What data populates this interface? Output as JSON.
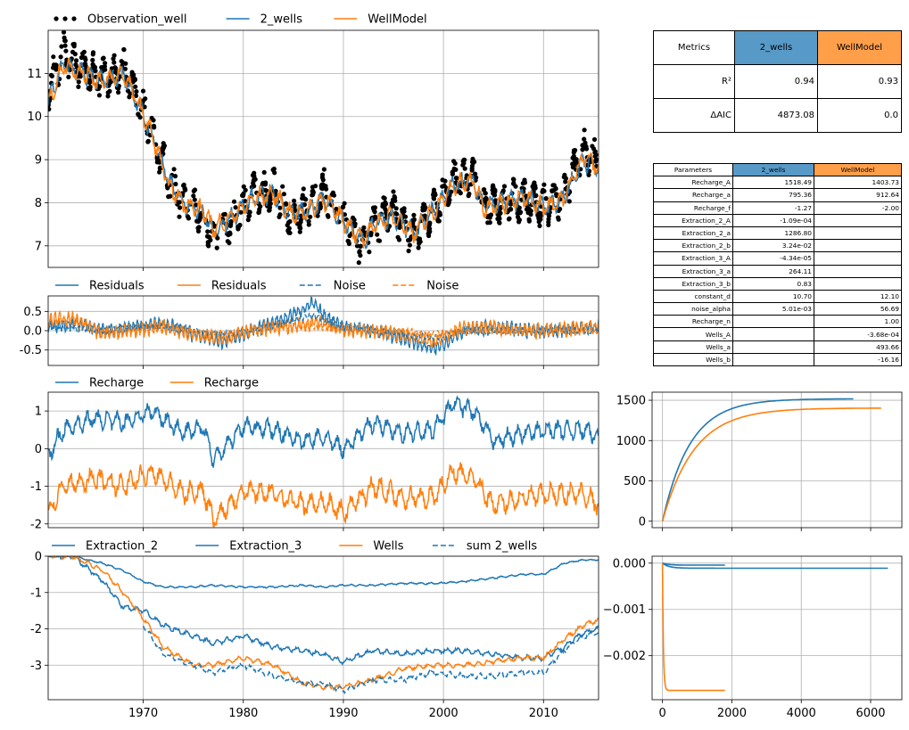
{
  "colors": {
    "blue": "#1f77b4",
    "orange": "#ff7f0e",
    "blue_header": "#5799c7",
    "orange_header": "#ff9f4a",
    "grid": "#b0b0b0"
  },
  "metrics_table": {
    "header": [
      "Metrics",
      "2_wells",
      "WellModel"
    ],
    "rows": [
      [
        "R²",
        "0.94",
        "0.93"
      ],
      [
        "ΔAIC",
        "4873.08",
        "0.0"
      ]
    ]
  },
  "parameters_table": {
    "header": [
      "Parameters",
      "2_wells",
      "WellModel"
    ],
    "rows": [
      [
        "Recharge_A",
        "1518.49",
        "1403.73"
      ],
      [
        "Recharge_a",
        "795.36",
        "912.64"
      ],
      [
        "Recharge_f",
        "-1.27",
        "-2.00"
      ],
      [
        "Extraction_2_A",
        "-1.09e-04",
        ""
      ],
      [
        "Extraction_2_a",
        "1286.80",
        ""
      ],
      [
        "Extraction_2_b",
        "3.24e-02",
        ""
      ],
      [
        "Extraction_3_A",
        "-4.34e-05",
        ""
      ],
      [
        "Extraction_3_a",
        "264.11",
        ""
      ],
      [
        "Extraction_3_b",
        "0.83",
        ""
      ],
      [
        "constant_d",
        "10.70",
        "12.10"
      ],
      [
        "noise_alpha",
        "5.01e-03",
        "56.69"
      ],
      [
        "Recharge_n",
        "",
        "1.00"
      ],
      [
        "Wells_A",
        "",
        "-3.68e-04"
      ],
      [
        "Wells_a",
        "",
        "493.66"
      ],
      [
        "Wells_b",
        "",
        "-16.16"
      ]
    ]
  },
  "chart_data": [
    {
      "type": "line",
      "panel": "head",
      "legend": [
        "Observation_well",
        "2_wells",
        "WellModel"
      ],
      "xlim": [
        1960.5,
        2015.5
      ],
      "ylim": [
        6.5,
        12.0
      ],
      "yticks": [
        7,
        8,
        9,
        10,
        11
      ],
      "keypoints_x": [
        1960.5,
        1962,
        1964,
        1966,
        1968,
        1969.5,
        1971,
        1972.5,
        1974,
        1976,
        1977,
        1979,
        1981,
        1983,
        1985,
        1987,
        1988,
        1990,
        1992,
        1993,
        1995,
        1997,
        1999,
        2001,
        2003,
        2004,
        2006,
        2008,
        2010,
        2012,
        2014,
        2015.5
      ],
      "series": [
        {
          "name": "Observation_well",
          "style": "dots",
          "values": [
            10.6,
            11.5,
            11.1,
            10.9,
            11.1,
            10.4,
            9.6,
            8.6,
            8.0,
            7.8,
            7.2,
            7.6,
            8.2,
            8.3,
            7.6,
            8.0,
            8.3,
            7.6,
            7.0,
            7.5,
            7.8,
            7.2,
            7.8,
            8.5,
            8.6,
            7.9,
            8.0,
            8.1,
            7.9,
            8.2,
            9.2,
            8.9
          ]
        },
        {
          "name": "2_wells",
          "style": "line",
          "values": [
            10.4,
            11.2,
            11.0,
            10.8,
            11.0,
            10.3,
            9.5,
            8.5,
            8.0,
            7.8,
            7.3,
            7.7,
            8.1,
            8.2,
            7.7,
            7.9,
            8.1,
            7.6,
            7.1,
            7.5,
            7.7,
            7.3,
            7.8,
            8.4,
            8.5,
            7.9,
            8.0,
            8.1,
            7.9,
            8.1,
            9.0,
            8.8
          ]
        },
        {
          "name": "WellModel",
          "style": "line",
          "values": [
            10.3,
            11.2,
            11.0,
            10.8,
            11.0,
            10.3,
            9.5,
            8.4,
            8.0,
            7.8,
            7.4,
            7.7,
            8.1,
            8.2,
            7.7,
            7.9,
            8.1,
            7.6,
            7.1,
            7.5,
            7.7,
            7.3,
            7.8,
            8.4,
            8.5,
            7.9,
            8.0,
            8.1,
            7.9,
            8.1,
            9.1,
            8.8
          ]
        }
      ]
    },
    {
      "type": "line",
      "panel": "residuals",
      "legend": [
        "Residuals",
        "Residuals",
        "Noise",
        "Noise"
      ],
      "xlim": [
        1960.5,
        2015.5
      ],
      "ylim": [
        -0.9,
        0.9
      ],
      "yticks": [
        -0.5,
        0.0,
        0.5
      ],
      "keypoints_x": [
        1960.5,
        1963,
        1966,
        1969,
        1972,
        1975,
        1978,
        1981,
        1984,
        1987,
        1988,
        1990,
        1993,
        1996,
        1999,
        2002,
        2005,
        2008,
        2011,
        2014,
        2015.5
      ],
      "series": [
        {
          "name": "Residuals",
          "values": [
            0.1,
            0.2,
            0.0,
            0.1,
            0.2,
            -0.1,
            -0.3,
            0.0,
            0.3,
            0.7,
            0.4,
            0.1,
            0.0,
            -0.2,
            -0.5,
            0.0,
            0.1,
            0.0,
            0.0,
            0.1,
            0.1
          ]
        },
        {
          "name": "Residuals",
          "values": [
            0.3,
            0.3,
            -0.1,
            0.0,
            0.1,
            -0.1,
            -0.2,
            0.0,
            0.1,
            0.2,
            0.2,
            0.0,
            0.0,
            -0.1,
            -0.3,
            0.1,
            0.1,
            0.0,
            0.0,
            0.1,
            0.1
          ]
        },
        {
          "name": "Noise",
          "style": "dashed",
          "values": [
            0.1,
            0.1,
            0.0,
            0.1,
            0.1,
            0.0,
            -0.1,
            0.0,
            0.2,
            0.4,
            0.3,
            0.1,
            0.0,
            -0.1,
            -0.2,
            0.0,
            0.0,
            0.0,
            0.0,
            0.0,
            0.0
          ]
        },
        {
          "name": "Noise",
          "style": "dashed",
          "values": [
            0.2,
            0.3,
            0.0,
            0.0,
            0.1,
            0.0,
            -0.1,
            0.0,
            0.1,
            0.1,
            0.1,
            0.0,
            0.0,
            0.0,
            -0.1,
            0.0,
            0.0,
            0.0,
            0.0,
            0.0,
            0.0
          ]
        }
      ]
    },
    {
      "type": "line",
      "panel": "recharge",
      "legend": [
        "Recharge",
        "Recharge"
      ],
      "xlim": [
        1960.5,
        2015.5
      ],
      "ylim": [
        -2.1,
        1.5
      ],
      "yticks": [
        -2,
        -1,
        0,
        1
      ],
      "keypoints_x": [
        1960.5,
        1962,
        1965,
        1968,
        1971,
        1974,
        1976,
        1977,
        1980,
        1983,
        1986,
        1988,
        1990,
        1993,
        1996,
        1999,
        2001,
        2003,
        2005,
        2008,
        2011,
        2014,
        2015.5
      ],
      "series": [
        {
          "name": "Recharge",
          "values": [
            -0.2,
            0.5,
            0.8,
            0.7,
            1.0,
            0.4,
            0.6,
            -0.3,
            0.6,
            0.5,
            0.2,
            0.3,
            0.0,
            0.7,
            0.4,
            0.5,
            1.2,
            1.0,
            0.2,
            0.4,
            0.5,
            0.5,
            0.3
          ]
        },
        {
          "name": "Recharge",
          "values": [
            -1.7,
            -1.0,
            -0.8,
            -1.0,
            -0.6,
            -1.2,
            -1.1,
            -1.9,
            -1.1,
            -1.2,
            -1.5,
            -1.4,
            -1.7,
            -1.0,
            -1.3,
            -1.3,
            -0.6,
            -0.8,
            -1.5,
            -1.3,
            -1.2,
            -1.2,
            -1.5
          ]
        }
      ]
    },
    {
      "type": "line",
      "panel": "recharge_response",
      "xlim": [
        -300,
        6900
      ],
      "ylim": [
        -80,
        1600
      ],
      "yticks": [
        0,
        500,
        1000,
        1500
      ],
      "series": [
        {
          "name": "2_wells",
          "tmax": 5500,
          "gain": 1518.49,
          "tau": 795.36
        },
        {
          "name": "WellModel",
          "tmax": 6300,
          "gain": 1403.73,
          "tau": 912.64
        }
      ]
    },
    {
      "type": "line",
      "panel": "wells",
      "legend": [
        "Extraction_2",
        "Extraction_3",
        "Wells",
        "sum 2_wells"
      ],
      "xlim": [
        1960.5,
        2015.5
      ],
      "ylim": [
        -3.95,
        0.0
      ],
      "yticks": [
        -3,
        -2,
        -1,
        0
      ],
      "xticks": [
        1970,
        1980,
        1990,
        2000,
        2010
      ],
      "keypoints_x": [
        1960.5,
        1963,
        1966,
        1968,
        1970,
        1972,
        1975,
        1977,
        1980,
        1983,
        1986,
        1988,
        1990,
        1993,
        1996,
        1999,
        2002,
        2005,
        2008,
        2010,
        2012,
        2014,
        2015.5
      ],
      "series": [
        {
          "name": "Extraction_2",
          "values": [
            0.0,
            0.0,
            -0.7,
            -1.4,
            -1.5,
            -1.9,
            -2.2,
            -2.4,
            -2.2,
            -2.5,
            -2.6,
            -2.7,
            -2.9,
            -2.6,
            -2.7,
            -2.6,
            -2.6,
            -2.7,
            -2.8,
            -2.8,
            -2.5,
            -2.1,
            -2.0
          ]
        },
        {
          "name": "Extraction_3",
          "values": [
            0.0,
            0.0,
            -0.2,
            -0.4,
            -0.7,
            -0.85,
            -0.85,
            -0.8,
            -0.85,
            -0.85,
            -0.8,
            -0.85,
            -0.8,
            -0.8,
            -0.75,
            -0.75,
            -0.7,
            -0.6,
            -0.5,
            -0.5,
            -0.2,
            -0.1,
            -0.1
          ]
        },
        {
          "name": "Wells",
          "values": [
            0.0,
            0.0,
            -0.4,
            -1.0,
            -1.7,
            -2.5,
            -3.0,
            -3.0,
            -2.8,
            -3.0,
            -3.5,
            -3.6,
            -3.6,
            -3.4,
            -3.1,
            -3.0,
            -3.0,
            -2.9,
            -2.8,
            -2.8,
            -2.3,
            -1.9,
            -1.75
          ]
        },
        {
          "name": "sum 2_wells",
          "style": "dashed",
          "values": [
            null,
            null,
            null,
            null,
            -1.9,
            -2.7,
            -3.0,
            -3.2,
            -3.0,
            -3.3,
            -3.5,
            -3.5,
            -3.7,
            -3.4,
            -3.4,
            -3.2,
            -3.3,
            -3.3,
            -3.2,
            -3.2,
            -2.6,
            -2.2,
            -2.1
          ]
        }
      ]
    },
    {
      "type": "line",
      "panel": "well_response",
      "xlim": [
        -300,
        6900
      ],
      "ylim": [
        -0.00295,
        0.00015
      ],
      "yticks": [
        0.0,
        -0.001,
        -0.002
      ],
      "xticks": [
        0,
        2000,
        4000,
        6000
      ],
      "series": [
        {
          "name": "Extraction_2",
          "tmax": 6500,
          "final": -0.000109
        },
        {
          "name": "Extraction_3",
          "tmax": 1800,
          "final": -4.34e-05
        },
        {
          "name": "Wells",
          "tmax": 1800,
          "final": -0.00275
        }
      ]
    }
  ]
}
